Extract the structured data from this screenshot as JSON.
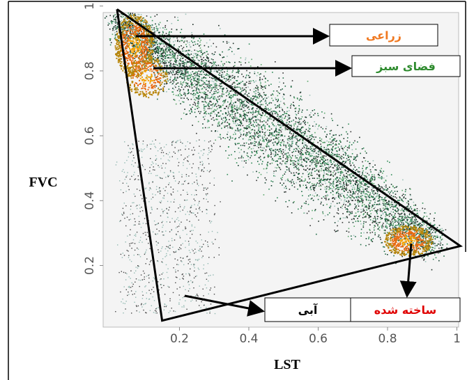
{
  "chart_data": {
    "type": "scatter",
    "x_label": "LST",
    "y_label": "FVC",
    "xlim": [
      -0.02,
      1.005
    ],
    "ylim": [
      0.01,
      0.98
    ],
    "xticks": [
      0.2,
      0.4,
      0.6,
      0.8,
      1
    ],
    "yticks": [
      0.2,
      0.4,
      0.6,
      0.8,
      1
    ],
    "triangle": {
      "x": [
        0.02,
        1.01,
        0.15,
        0.02
      ],
      "y": [
        0.99,
        0.26,
        0.03,
        0.99
      ]
    },
    "annotations": [
      {
        "text": "زراعی",
        "color": "#f07820"
      },
      {
        "text": "فضای سبز",
        "color": "#2e8b2e"
      },
      {
        "text": "ساخته شده",
        "color": "#e00000"
      },
      {
        "text": "آبی",
        "color": "#000000"
      }
    ]
  }
}
